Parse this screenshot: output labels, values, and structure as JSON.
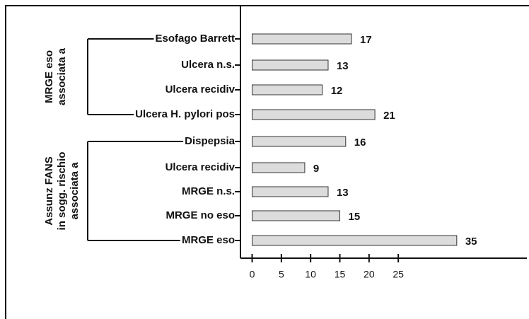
{
  "chart_data": {
    "type": "barh",
    "categories": [
      "Esofago Barrett",
      "Ulcera n.s.",
      "Ulcera recidiv",
      "Ulcera H. pylori pos",
      "Dispepsia",
      "Ulcera recidiv",
      "MRGE n.s.",
      "MRGE no eso",
      "MRGE eso"
    ],
    "values": [
      17,
      13,
      12,
      21,
      16,
      9,
      13,
      15,
      35
    ],
    "color": "#dcdcdc",
    "groups": [
      {
        "label": [
          "MRGE eso",
          "associata a"
        ]
      },
      {
        "label": [
          "Assunz FANS",
          "in sogg. rischio",
          "associata a"
        ]
      }
    ],
    "xlim": [
      -2,
      47
    ],
    "xticks": [
      0,
      5,
      10,
      15,
      20,
      25
    ]
  }
}
